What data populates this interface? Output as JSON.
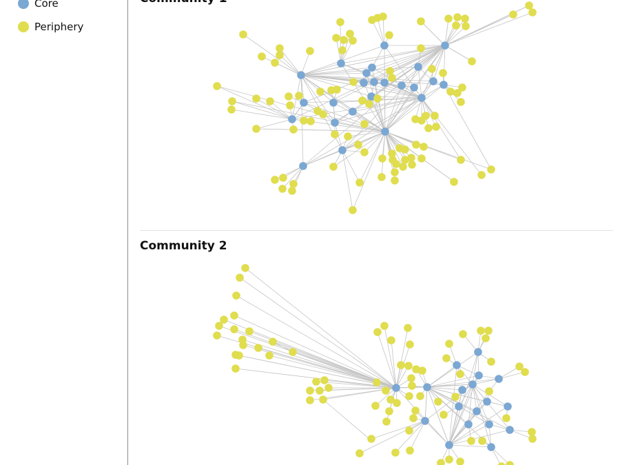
{
  "legend": {
    "items": [
      {
        "label": "Core",
        "color": "#7ba7d3"
      },
      {
        "label": "Periphery",
        "color": "#e0dd4f"
      }
    ]
  },
  "communities": [
    {
      "title": "Community 1"
    },
    {
      "title": "Community 2"
    }
  ],
  "colors": {
    "core": "#7ba7d3",
    "periphery": "#e0dd4f",
    "edge": "#c4c4c4"
  }
}
